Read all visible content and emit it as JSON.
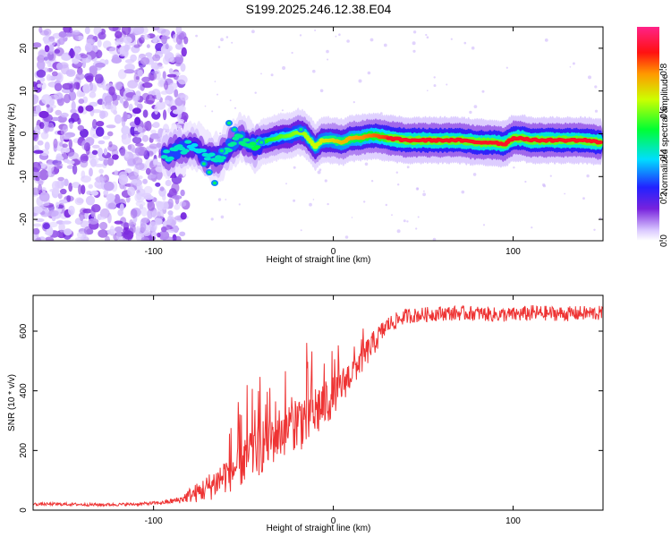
{
  "chart_data": [
    {
      "type": "heatmap",
      "title": "S199.2025.246.12.38.E04",
      "xlabel": "Height of straight line (km)",
      "ylabel": "Frequency (Hz)",
      "xlim": [
        -167,
        150
      ],
      "ylim": [
        -25,
        25
      ],
      "xticks": [
        -100,
        0,
        100
      ],
      "yticks": [
        -20,
        -10,
        0,
        10,
        20
      ],
      "colorbar": {
        "label": "Normalized spectral amplitude",
        "range": [
          0,
          1
        ],
        "ticks": [
          "0.0",
          "0.2",
          "0.4",
          "0.6",
          "0.8"
        ],
        "tick_values": [
          0,
          0.2,
          0.4,
          0.6,
          0.8
        ]
      },
      "ridge_path": {
        "x": [
          -92,
          -88,
          -84,
          -80,
          -76,
          -72,
          -68,
          -64,
          -60,
          -56,
          -52,
          -48,
          -44,
          -40,
          -36,
          -32,
          -28,
          -24,
          -20,
          -16,
          -14,
          -12,
          -10,
          -6,
          0,
          5,
          10,
          15,
          20,
          25,
          30,
          40,
          50,
          60,
          70,
          80,
          90,
          95,
          100,
          105,
          110,
          120,
          130,
          140,
          148
        ],
        "freq": [
          -5,
          -4,
          -3.5,
          -3,
          -3,
          -5,
          -6,
          -5.5,
          -4,
          -2,
          -1,
          -2,
          -3,
          -2,
          -1.5,
          -1,
          -0.5,
          -0.5,
          0.5,
          0,
          -1,
          -2,
          -3,
          -1.5,
          -1.5,
          -2,
          -1,
          -1,
          -0.5,
          -0.5,
          -1,
          -1.5,
          -1.5,
          -1.5,
          -1.5,
          -2,
          -2,
          -2.5,
          -1,
          -1,
          -1.5,
          -1.5,
          -1.5,
          -1.5,
          -2
        ]
      }
    },
    {
      "type": "line",
      "title": "",
      "xlabel": "Height of straight line (km)",
      "ylabel": "SNR (10 * v/v)",
      "xlim": [
        -167,
        150
      ],
      "ylim": [
        0,
        720
      ],
      "xticks": [
        -100,
        0,
        100
      ],
      "yticks": [
        0,
        200,
        400,
        600
      ],
      "series": [
        {
          "name": "SNR",
          "color": "#ee3333",
          "x": [
            -167,
            -150,
            -130,
            -110,
            -95,
            -85,
            -80,
            -75,
            -70,
            -65,
            -60,
            -55,
            -50,
            -45,
            -40,
            -35,
            -30,
            -25,
            -20,
            -15,
            -10,
            -5,
            0,
            5,
            10,
            15,
            20,
            25,
            30,
            40,
            50,
            60,
            70,
            80,
            90,
            100,
            110,
            120,
            130,
            140,
            150
          ],
          "values": [
            20,
            20,
            18,
            20,
            25,
            35,
            50,
            60,
            75,
            95,
            120,
            140,
            170,
            200,
            220,
            240,
            260,
            280,
            300,
            310,
            330,
            360,
            380,
            420,
            460,
            500,
            540,
            580,
            620,
            650,
            655,
            660,
            660,
            660,
            655,
            655,
            660,
            660,
            658,
            660,
            660
          ],
          "noise": [
            5,
            5,
            5,
            5,
            6,
            12,
            25,
            35,
            45,
            55,
            65,
            75,
            90,
            110,
            100,
            95,
            90,
            90,
            100,
            110,
            100,
            90,
            70,
            60,
            55,
            50,
            45,
            40,
            30,
            25,
            25,
            25,
            25,
            25,
            25,
            25,
            28,
            25,
            25,
            25,
            25
          ]
        }
      ]
    }
  ]
}
